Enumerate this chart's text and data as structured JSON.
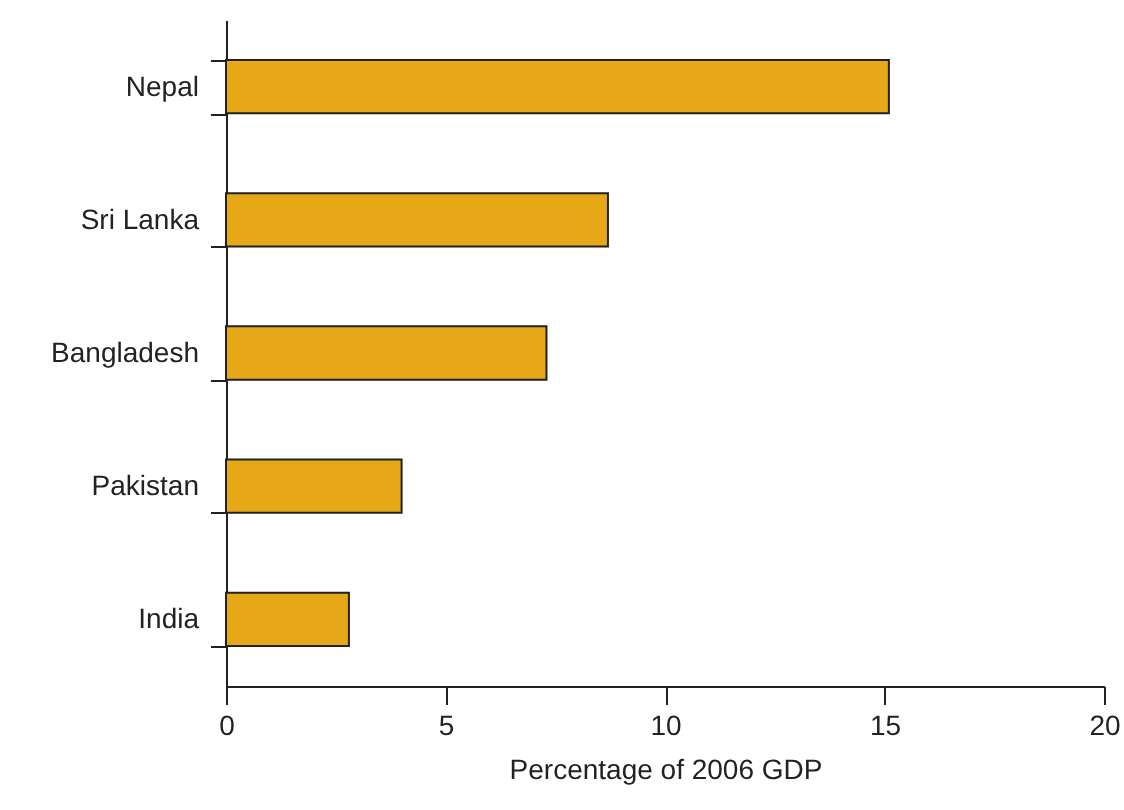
{
  "chart_data": {
    "type": "bar",
    "orientation": "horizontal",
    "xlabel": "Percentage of 2006 GDP",
    "categories": [
      "Nepal",
      "Sri Lanka",
      "Bangladesh",
      "Pakistan",
      "India"
    ],
    "values": [
      15.1,
      8.7,
      7.3,
      4.0,
      2.8
    ],
    "color": "#e6a817",
    "xlim": [
      0,
      20
    ],
    "xticks": [
      0,
      5,
      10,
      15,
      20
    ],
    "grid": false
  }
}
